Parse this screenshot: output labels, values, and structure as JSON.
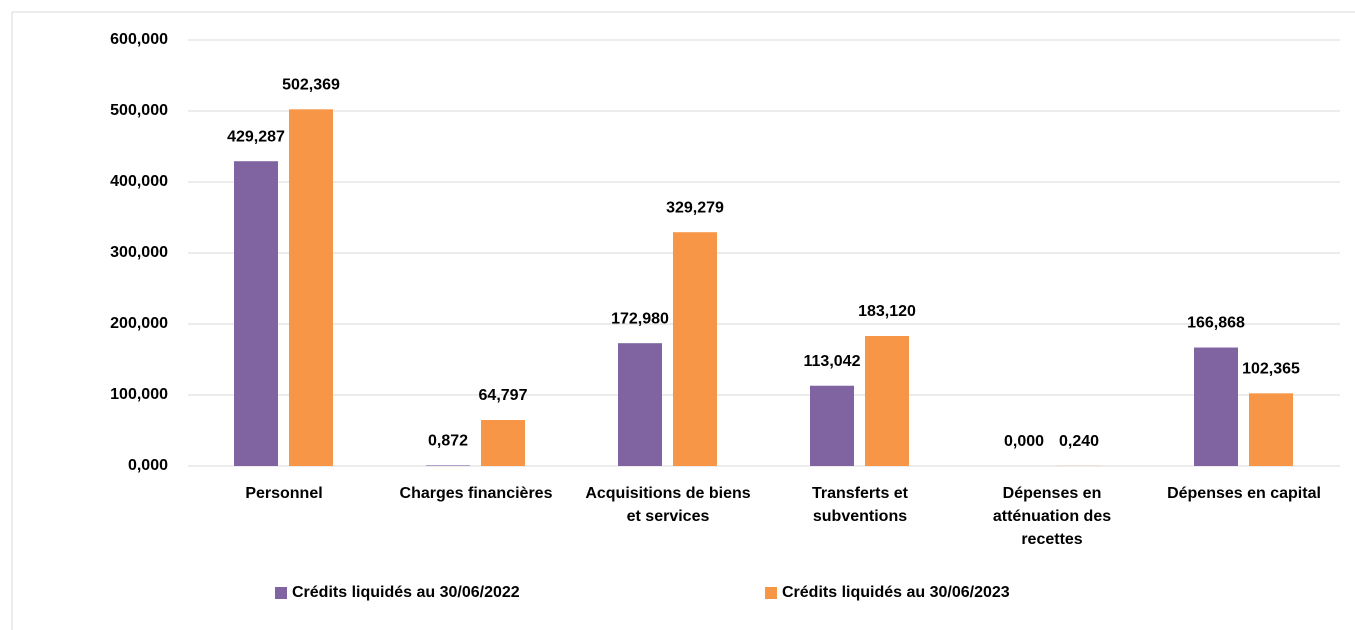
{
  "chart_data": {
    "type": "bar",
    "categories": [
      "Personnel",
      "Charges financières",
      "Acquisitions de biens et services",
      "Transferts et subventions",
      "Dépenses en atténuation des recettes",
      "Dépenses en capital"
    ],
    "series": [
      {
        "name": "Crédits liquidés au 30/06/2022",
        "color": "#8064a2",
        "values": [
          429.287,
          0.872,
          172.98,
          113.042,
          0,
          166.868
        ],
        "value_labels": [
          "429,287",
          "0,872",
          "172,980",
          "113,042",
          "0,000",
          "166,868"
        ]
      },
      {
        "name": "Crédits liquidés au 30/06/2023",
        "color": "#f79646",
        "values": [
          502.369,
          64.797,
          329.279,
          183.12,
          0.24,
          102.365
        ],
        "value_labels": [
          "502,369",
          "64,797",
          "329,279",
          "183,120",
          "0,240",
          "102,365"
        ]
      }
    ],
    "ylim": [
      0,
      600
    ],
    "yticks": [
      {
        "value": 0,
        "label": "0,000"
      },
      {
        "value": 100,
        "label": "100,000"
      },
      {
        "value": 200,
        "label": "200,000"
      },
      {
        "value": 300,
        "label": "300,000"
      },
      {
        "value": 400,
        "label": "400,000"
      },
      {
        "value": 500,
        "label": "500,000"
      },
      {
        "value": 600,
        "label": "600,000"
      }
    ],
    "grid": true,
    "legend": "bottom"
  }
}
